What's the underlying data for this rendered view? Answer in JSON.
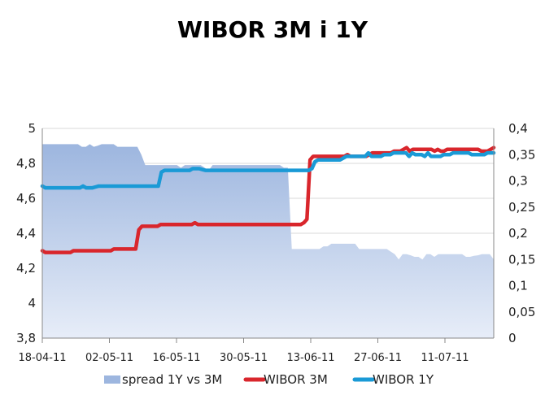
{
  "chart_data": {
    "type": "line",
    "title": "WIBOR 3M i 1Y",
    "x_tick_labels": [
      "18-04-11",
      "02-05-11",
      "16-05-11",
      "30-05-11",
      "13-06-11",
      "27-06-11",
      "11-07-11"
    ],
    "y_left": {
      "lim": [
        3.8,
        5.0
      ],
      "ticks": [
        "3,8",
        "4",
        "4,2",
        "4,4",
        "4,6",
        "4,8",
        "5"
      ]
    },
    "y_right": {
      "lim": [
        0,
        0.4
      ],
      "ticks": [
        "0",
        "0,05",
        "0,1",
        "0,15",
        "0,2",
        "0,25",
        "0,3",
        "0,35",
        "0,4"
      ]
    },
    "grid": true,
    "legend_position": "bottom",
    "series": [
      {
        "name": "spread 1Y vs 3M",
        "type": "area",
        "axis": "right",
        "color": "#9db6df",
        "values": [
          0.37,
          0.37,
          0.37,
          0.37,
          0.37,
          0.37,
          0.37,
          0.37,
          0.37,
          0.37,
          0.365,
          0.365,
          0.37,
          0.365,
          0.367,
          0.37,
          0.37,
          0.37,
          0.37,
          0.365,
          0.365,
          0.365,
          0.365,
          0.365,
          0.365,
          0.35,
          0.33,
          0.33,
          0.33,
          0.33,
          0.33,
          0.33,
          0.33,
          0.33,
          0.33,
          0.325,
          0.33,
          0.33,
          0.33,
          0.33,
          0.33,
          0.325,
          0.32,
          0.33,
          0.33,
          0.33,
          0.33,
          0.33,
          0.33,
          0.33,
          0.33,
          0.33,
          0.33,
          0.33,
          0.33,
          0.33,
          0.33,
          0.33,
          0.33,
          0.33,
          0.33,
          0.325,
          0.325,
          0.17,
          0.17,
          0.17,
          0.17,
          0.17,
          0.17,
          0.17,
          0.17,
          0.175,
          0.175,
          0.18,
          0.18,
          0.18,
          0.18,
          0.18,
          0.18,
          0.18,
          0.17,
          0.17,
          0.17,
          0.17,
          0.17,
          0.17,
          0.17,
          0.17,
          0.165,
          0.16,
          0.15,
          0.16,
          0.16,
          0.158,
          0.155,
          0.155,
          0.15,
          0.16,
          0.16,
          0.155,
          0.16,
          0.16,
          0.16,
          0.16,
          0.16,
          0.16,
          0.16,
          0.155,
          0.155,
          0.157,
          0.158,
          0.16,
          0.16,
          0.16,
          0.15
        ]
      },
      {
        "name": "WIBOR 3M",
        "type": "line",
        "axis": "left",
        "color": "#d9262c",
        "values": [
          4.3,
          4.29,
          4.29,
          4.29,
          4.29,
          4.29,
          4.29,
          4.29,
          4.29,
          4.29,
          4.3,
          4.3,
          4.3,
          4.3,
          4.3,
          4.3,
          4.3,
          4.3,
          4.3,
          4.3,
          4.3,
          4.3,
          4.3,
          4.31,
          4.31,
          4.31,
          4.31,
          4.31,
          4.31,
          4.31,
          4.31,
          4.42,
          4.44,
          4.44,
          4.44,
          4.44,
          4.44,
          4.44,
          4.45,
          4.45,
          4.45,
          4.45,
          4.45,
          4.45,
          4.45,
          4.45,
          4.45,
          4.45,
          4.45,
          4.46,
          4.45,
          4.45,
          4.45,
          4.45,
          4.45,
          4.45,
          4.45,
          4.45,
          4.45,
          4.45,
          4.45,
          4.45,
          4.45,
          4.45,
          4.45,
          4.45,
          4.45,
          4.45,
          4.45,
          4.45,
          4.45,
          4.45,
          4.45,
          4.45,
          4.45,
          4.45,
          4.45,
          4.45,
          4.45,
          4.45,
          4.45,
          4.45,
          4.45,
          4.45,
          4.46,
          4.48,
          4.82,
          4.84,
          4.84,
          4.84,
          4.84,
          4.84,
          4.84,
          4.84,
          4.84,
          4.84,
          4.84,
          4.84,
          4.85,
          4.84,
          4.84,
          4.84,
          4.84,
          4.84,
          4.84,
          4.85,
          4.86,
          4.86,
          4.86,
          4.86,
          4.86,
          4.86,
          4.86,
          4.87,
          4.87,
          4.87,
          4.88,
          4.89,
          4.87,
          4.88,
          4.88,
          4.88,
          4.88,
          4.88,
          4.88,
          4.88,
          4.87,
          4.88,
          4.87,
          4.87,
          4.88,
          4.88,
          4.88,
          4.88,
          4.88,
          4.88,
          4.88,
          4.88,
          4.88,
          4.88,
          4.88,
          4.87,
          4.87,
          4.87,
          4.88,
          4.89
        ]
      },
      {
        "name": "WIBOR 1Y",
        "type": "line",
        "axis": "left",
        "color": "#1a9ad6",
        "values": [
          4.67,
          4.66,
          4.66,
          4.66,
          4.66,
          4.66,
          4.66,
          4.66,
          4.66,
          4.66,
          4.66,
          4.66,
          4.66,
          4.67,
          4.66,
          4.66,
          4.66,
          4.665,
          4.67,
          4.67,
          4.67,
          4.67,
          4.67,
          4.67,
          4.67,
          4.67,
          4.67,
          4.67,
          4.67,
          4.67,
          4.67,
          4.67,
          4.67,
          4.67,
          4.67,
          4.67,
          4.67,
          4.67,
          4.75,
          4.76,
          4.76,
          4.76,
          4.76,
          4.76,
          4.76,
          4.76,
          4.76,
          4.76,
          4.77,
          4.77,
          4.77,
          4.765,
          4.76,
          4.76,
          4.76,
          4.76,
          4.76,
          4.76,
          4.76,
          4.76,
          4.76,
          4.76,
          4.76,
          4.76,
          4.76,
          4.76,
          4.76,
          4.76,
          4.76,
          4.76,
          4.76,
          4.76,
          4.76,
          4.76,
          4.76,
          4.76,
          4.76,
          4.76,
          4.76,
          4.76,
          4.76,
          4.76,
          4.76,
          4.76,
          4.76,
          4.76,
          4.77,
          4.81,
          4.82,
          4.82,
          4.82,
          4.82,
          4.82,
          4.82,
          4.82,
          4.82,
          4.83,
          4.84,
          4.84,
          4.84,
          4.84,
          4.84,
          4.84,
          4.84,
          4.86,
          4.84,
          4.84,
          4.84,
          4.84,
          4.85,
          4.85,
          4.85,
          4.86,
          4.86,
          4.86,
          4.86,
          4.86,
          4.84,
          4.86,
          4.85,
          4.85,
          4.85,
          4.84,
          4.86,
          4.84,
          4.84,
          4.84,
          4.84,
          4.85,
          4.85,
          4.85,
          4.86,
          4.86,
          4.86,
          4.86,
          4.86,
          4.86,
          4.85,
          4.85,
          4.85,
          4.85,
          4.85,
          4.86,
          4.86,
          4.86
        ]
      }
    ]
  }
}
